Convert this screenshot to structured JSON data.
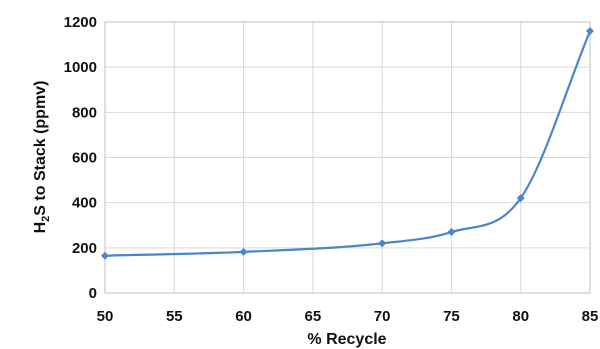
{
  "chart_data": {
    "type": "line",
    "title": "",
    "xlabel": "% Recycle",
    "ylabel_parts": {
      "main_prefix": "H",
      "subscript": "2",
      "main_suffix": "S to Stack (ppmv)"
    },
    "xlim": [
      50,
      85
    ],
    "ylim": [
      0,
      1200
    ],
    "x_ticks": [
      50,
      55,
      60,
      65,
      70,
      75,
      80,
      85
    ],
    "y_ticks": [
      0,
      200,
      400,
      600,
      800,
      1000,
      1200
    ],
    "grid": true,
    "series": [
      {
        "color": "#4a86c8",
        "x": [
          50,
          60,
          70,
          75,
          80,
          85
        ],
        "y": [
          165,
          182,
          220,
          270,
          420,
          1160
        ]
      }
    ]
  }
}
